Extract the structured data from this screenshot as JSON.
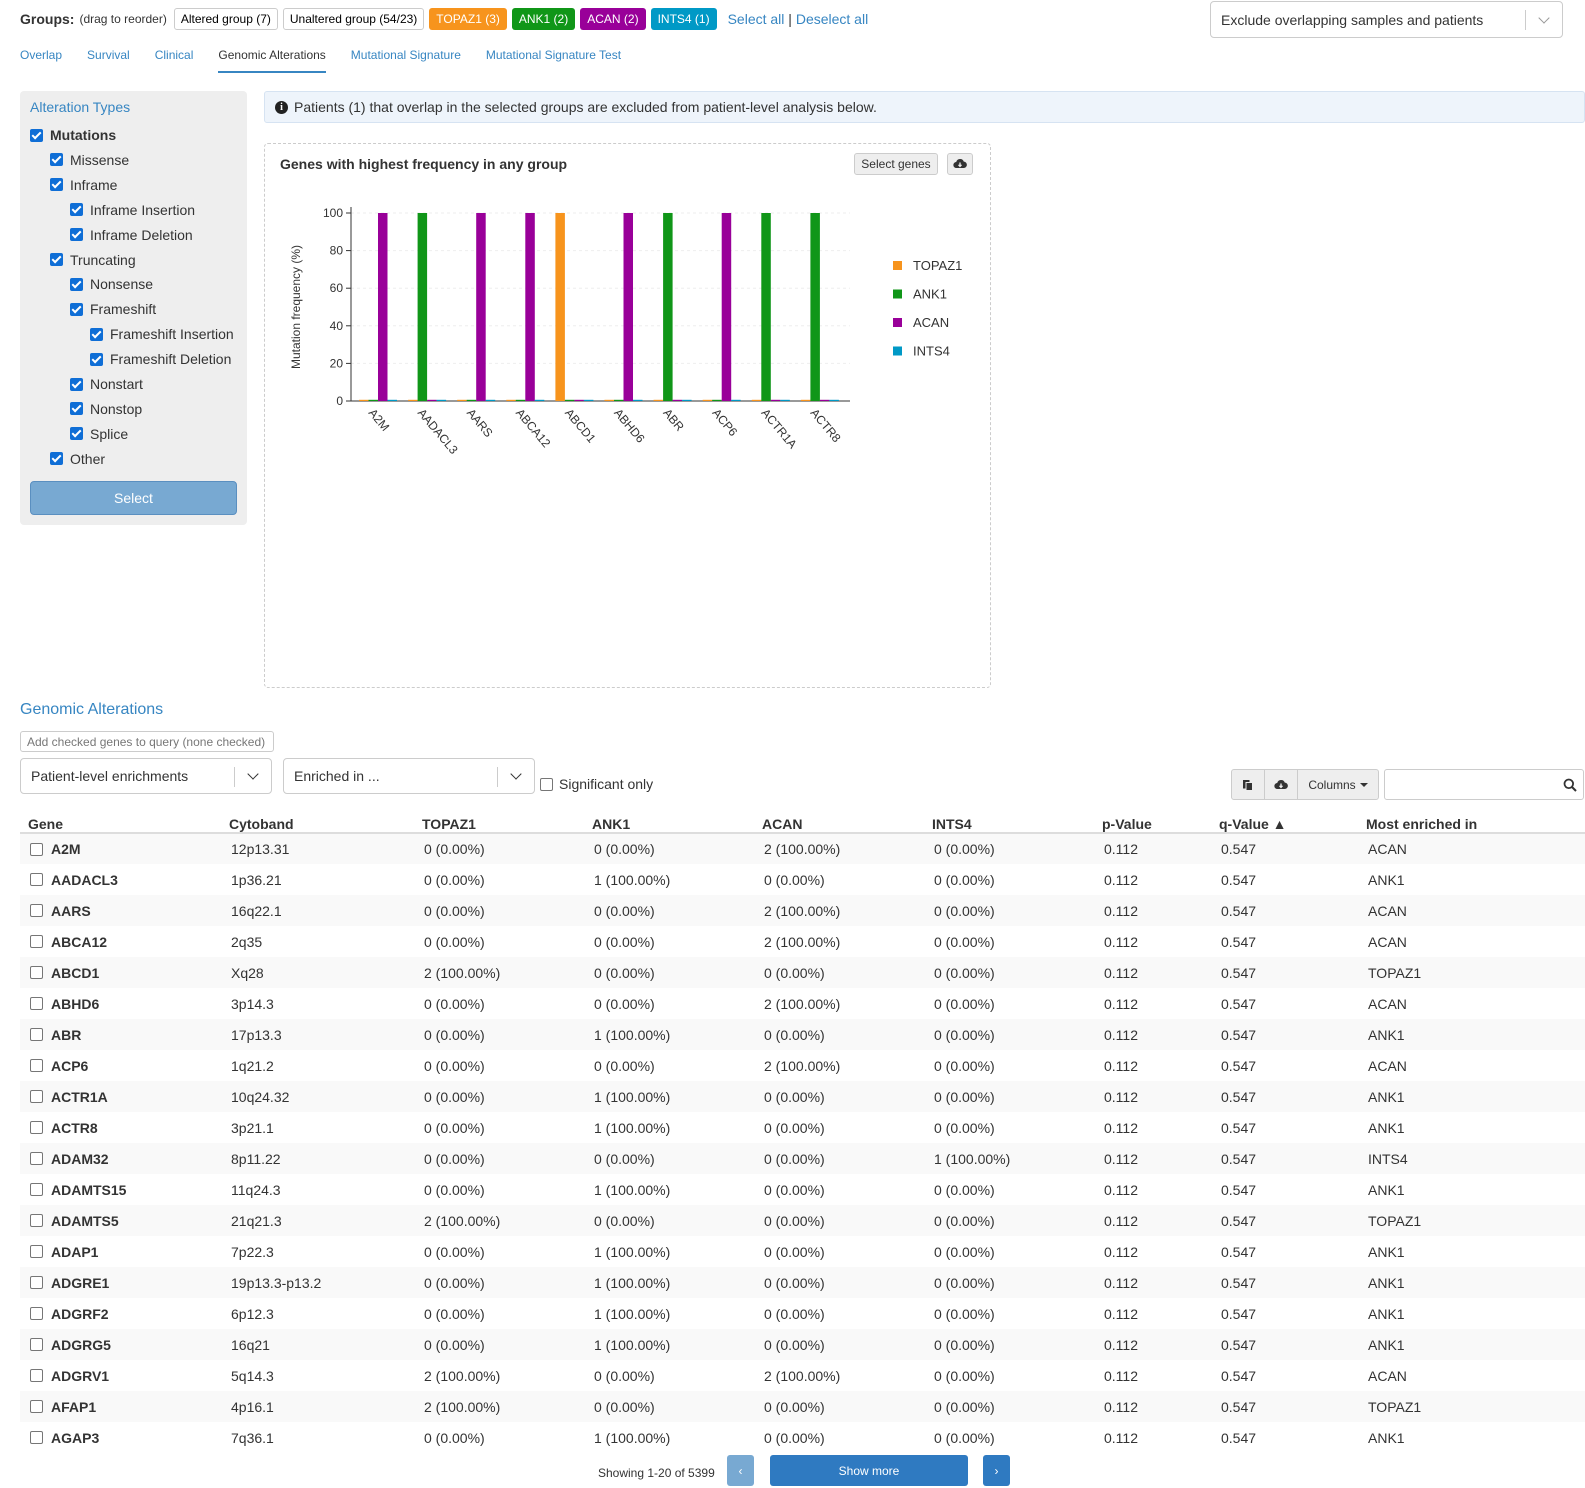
{
  "groups": {
    "label": "Groups:",
    "drag_note": "(drag to reorder)",
    "badges": [
      {
        "label": "Altered group (7)",
        "color": "#ffffff"
      },
      {
        "label": "Unaltered group (54/23)",
        "color": "#ffffff"
      },
      {
        "label": "TOPAZ1 (3)",
        "color": "#f7941d"
      },
      {
        "label": "ANK1 (2)",
        "color": "#109618"
      },
      {
        "label": "ACAN (2)",
        "color": "#990099"
      },
      {
        "label": "INTS4 (1)",
        "color": "#0099c6"
      }
    ],
    "select_all": "Select all",
    "separator": "|",
    "deselect_all": "Deselect all"
  },
  "overlap_dropdown": {
    "value": "Exclude overlapping samples and patients"
  },
  "tabs": [
    "Overlap",
    "Survival",
    "Clinical",
    "Genomic Alterations",
    "Mutational Signature",
    "Mutational Signature Test"
  ],
  "active_tab": "Genomic Alterations",
  "sidebar": {
    "title": "Alteration Types",
    "items": [
      {
        "label": "Mutations",
        "level": 0,
        "bold": true
      },
      {
        "label": "Missense",
        "level": 1
      },
      {
        "label": "Inframe",
        "level": 1
      },
      {
        "label": "Inframe Insertion",
        "level": 2
      },
      {
        "label": "Inframe Deletion",
        "level": 2
      },
      {
        "label": "Truncating",
        "level": 1
      },
      {
        "label": "Nonsense",
        "level": 2
      },
      {
        "label": "Frameshift",
        "level": 2
      },
      {
        "label": "Frameshift Insertion",
        "level": 3
      },
      {
        "label": "Frameshift Deletion",
        "level": 3
      },
      {
        "label": "Nonstart",
        "level": 2
      },
      {
        "label": "Nonstop",
        "level": 2
      },
      {
        "label": "Splice",
        "level": 2
      },
      {
        "label": "Other",
        "level": 1
      }
    ],
    "select_button": "Select"
  },
  "info": {
    "text": "Patients (1) that overlap in the selected groups are excluded from patient-level analysis below."
  },
  "chart_panel": {
    "select_genes": "Select genes"
  },
  "chart_data": {
    "type": "bar",
    "title": "Genes with highest frequency in any group",
    "ylabel": "Mutation frequency (%)",
    "ylim": [
      0,
      100
    ],
    "yticks": [
      0,
      20,
      40,
      60,
      80,
      100
    ],
    "categories": [
      "A2M",
      "AADACL3",
      "AARS",
      "ABCA12",
      "ABCD1",
      "ABHD6",
      "ABR",
      "ACP6",
      "ACTR1A",
      "ACTR8"
    ],
    "series": [
      {
        "name": "TOPAZ1",
        "color": "#f7941d",
        "values": [
          0,
          0,
          0,
          0,
          100,
          0,
          0,
          0,
          0,
          0
        ]
      },
      {
        "name": "ANK1",
        "color": "#109618",
        "values": [
          0,
          100,
          0,
          0,
          0,
          0,
          100,
          0,
          100,
          100
        ]
      },
      {
        "name": "ACAN",
        "color": "#990099",
        "values": [
          100,
          0,
          100,
          100,
          0,
          100,
          0,
          100,
          0,
          0
        ]
      },
      {
        "name": "INTS4",
        "color": "#0099c6",
        "values": [
          0,
          0,
          0,
          0,
          0,
          0,
          0,
          0,
          0,
          0
        ]
      }
    ],
    "legend": "right"
  },
  "section": {
    "title": "Genomic Alterations",
    "add_checked": "Add checked genes to query (none checked)",
    "level_select": "Patient-level enrichments",
    "enriched_select": "Enriched in ...",
    "significant_only": "Significant only",
    "columns_button": "Columns"
  },
  "table": {
    "headers": [
      "Gene",
      "Cytoband",
      "TOPAZ1",
      "ANK1",
      "ACAN",
      "INTS4",
      "p-Value",
      "q-Value ▲",
      "Most enriched in"
    ],
    "rows": [
      [
        "A2M",
        "12p13.31",
        "0 (0.00%)",
        "0 (0.00%)",
        "2 (100.00%)",
        "0 (0.00%)",
        "0.112",
        "0.547",
        "ACAN"
      ],
      [
        "AADACL3",
        "1p36.21",
        "0 (0.00%)",
        "1 (100.00%)",
        "0 (0.00%)",
        "0 (0.00%)",
        "0.112",
        "0.547",
        "ANK1"
      ],
      [
        "AARS",
        "16q22.1",
        "0 (0.00%)",
        "0 (0.00%)",
        "2 (100.00%)",
        "0 (0.00%)",
        "0.112",
        "0.547",
        "ACAN"
      ],
      [
        "ABCA12",
        "2q35",
        "0 (0.00%)",
        "0 (0.00%)",
        "2 (100.00%)",
        "0 (0.00%)",
        "0.112",
        "0.547",
        "ACAN"
      ],
      [
        "ABCD1",
        "Xq28",
        "2 (100.00%)",
        "0 (0.00%)",
        "0 (0.00%)",
        "0 (0.00%)",
        "0.112",
        "0.547",
        "TOPAZ1"
      ],
      [
        "ABHD6",
        "3p14.3",
        "0 (0.00%)",
        "0 (0.00%)",
        "2 (100.00%)",
        "0 (0.00%)",
        "0.112",
        "0.547",
        "ACAN"
      ],
      [
        "ABR",
        "17p13.3",
        "0 (0.00%)",
        "1 (100.00%)",
        "0 (0.00%)",
        "0 (0.00%)",
        "0.112",
        "0.547",
        "ANK1"
      ],
      [
        "ACP6",
        "1q21.2",
        "0 (0.00%)",
        "0 (0.00%)",
        "2 (100.00%)",
        "0 (0.00%)",
        "0.112",
        "0.547",
        "ACAN"
      ],
      [
        "ACTR1A",
        "10q24.32",
        "0 (0.00%)",
        "1 (100.00%)",
        "0 (0.00%)",
        "0 (0.00%)",
        "0.112",
        "0.547",
        "ANK1"
      ],
      [
        "ACTR8",
        "3p21.1",
        "0 (0.00%)",
        "1 (100.00%)",
        "0 (0.00%)",
        "0 (0.00%)",
        "0.112",
        "0.547",
        "ANK1"
      ],
      [
        "ADAM32",
        "8p11.22",
        "0 (0.00%)",
        "0 (0.00%)",
        "0 (0.00%)",
        "1 (100.00%)",
        "0.112",
        "0.547",
        "INTS4"
      ],
      [
        "ADAMTS15",
        "11q24.3",
        "0 (0.00%)",
        "1 (100.00%)",
        "0 (0.00%)",
        "0 (0.00%)",
        "0.112",
        "0.547",
        "ANK1"
      ],
      [
        "ADAMTS5",
        "21q21.3",
        "2 (100.00%)",
        "0 (0.00%)",
        "0 (0.00%)",
        "0 (0.00%)",
        "0.112",
        "0.547",
        "TOPAZ1"
      ],
      [
        "ADAP1",
        "7p22.3",
        "0 (0.00%)",
        "1 (100.00%)",
        "0 (0.00%)",
        "0 (0.00%)",
        "0.112",
        "0.547",
        "ANK1"
      ],
      [
        "ADGRE1",
        "19p13.3-p13.2",
        "0 (0.00%)",
        "1 (100.00%)",
        "0 (0.00%)",
        "0 (0.00%)",
        "0.112",
        "0.547",
        "ANK1"
      ],
      [
        "ADGRF2",
        "6p12.3",
        "0 (0.00%)",
        "1 (100.00%)",
        "0 (0.00%)",
        "0 (0.00%)",
        "0.112",
        "0.547",
        "ANK1"
      ],
      [
        "ADGRG5",
        "16q21",
        "0 (0.00%)",
        "1 (100.00%)",
        "0 (0.00%)",
        "0 (0.00%)",
        "0.112",
        "0.547",
        "ANK1"
      ],
      [
        "ADGRV1",
        "5q14.3",
        "2 (100.00%)",
        "0 (0.00%)",
        "2 (100.00%)",
        "0 (0.00%)",
        "0.112",
        "0.547",
        "ACAN"
      ],
      [
        "AFAP1",
        "4p16.1",
        "2 (100.00%)",
        "0 (0.00%)",
        "0 (0.00%)",
        "0 (0.00%)",
        "0.112",
        "0.547",
        "TOPAZ1"
      ],
      [
        "AGAP3",
        "7q36.1",
        "0 (0.00%)",
        "1 (100.00%)",
        "0 (0.00%)",
        "0 (0.00%)",
        "0.112",
        "0.547",
        "ANK1"
      ]
    ]
  },
  "pager": {
    "showing": "Showing 1-20 of 5399",
    "prev": "‹",
    "show_more": "Show more",
    "next": "›"
  }
}
